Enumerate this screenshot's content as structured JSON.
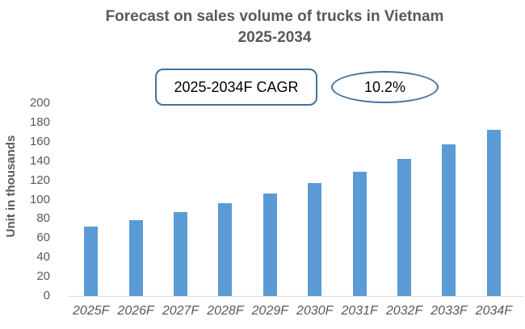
{
  "title": {
    "line1": "Forecast on sales volume of trucks in Vietnam",
    "line2": "2025-2034"
  },
  "annotations": {
    "cagr_label": "2025-2034F CAGR",
    "cagr_value": "10.2%"
  },
  "chart_data": {
    "type": "bar",
    "title": "Forecast on sales volume of trucks in Vietnam 2025-2034",
    "categories": [
      "2025F",
      "2026F",
      "2027F",
      "2028F",
      "2029F",
      "2030F",
      "2031F",
      "2032F",
      "2033F",
      "2034F"
    ],
    "values": [
      72,
      79,
      87,
      96,
      106,
      117,
      129,
      142,
      157,
      172
    ],
    "xlabel": "",
    "ylabel": "Unit in thousands",
    "ylim": [
      0,
      200
    ],
    "ytick_step": 20,
    "grid": false,
    "legend": false,
    "bar_color": "#5B9BD5",
    "annotation_border_color": "#41719C",
    "axis_line_color": "#D9D9D9",
    "text_color": "#595959"
  }
}
